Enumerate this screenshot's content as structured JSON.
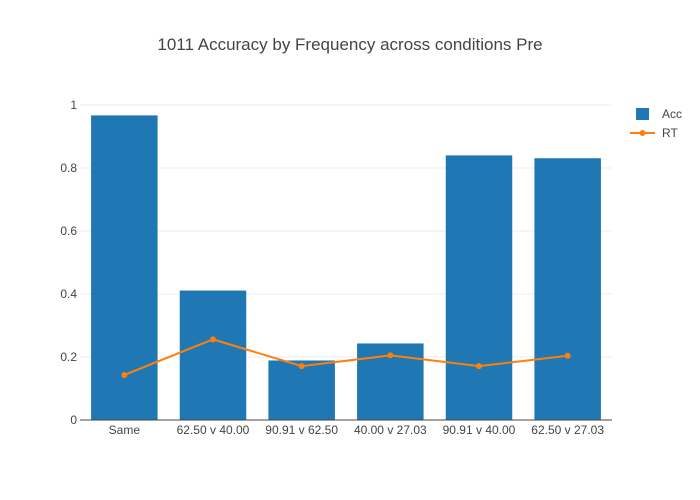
{
  "chart_data": {
    "type": "bar",
    "title": "1011 Accuracy by Frequency across conditions Pre",
    "xlabel": "",
    "ylabel": "",
    "categories": [
      "Same",
      "62.50 v 40.00",
      "90.91 v 62.50",
      "40.00 v 27.03",
      "90.91 v 40.00",
      "62.50 v 27.03"
    ],
    "series": [
      {
        "name": "Acc",
        "type": "bar",
        "color": "#1f77b4",
        "values": [
          0.967,
          0.411,
          0.189,
          0.243,
          0.84,
          0.831
        ]
      },
      {
        "name": "RT",
        "type": "line",
        "color": "#ff7f0e",
        "values": [
          0.143,
          0.256,
          0.171,
          0.205,
          0.171,
          0.204
        ]
      }
    ],
    "ylim": [
      0,
      1
    ],
    "yticks": [
      0,
      0.2,
      0.4,
      0.6,
      0.8,
      1
    ],
    "ytick_labels": [
      "0",
      "0.2",
      "0.4",
      "0.6",
      "0.8",
      "1"
    ],
    "grid": true,
    "legend_position": "top-right"
  }
}
